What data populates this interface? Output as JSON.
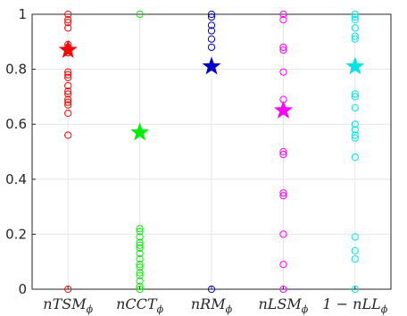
{
  "chart_data": {
    "type": "scatter",
    "categories": [
      "nTSM",
      "nCCT",
      "nRM",
      "nLSM",
      "1 − nLL"
    ],
    "category_subscript": "ϕ",
    "ylim": [
      0,
      1
    ],
    "yticks": [
      0,
      0.2,
      0.4,
      0.6,
      0.8,
      1
    ],
    "ytick_labels": [
      "0",
      "0.2",
      "0.4",
      "0.6",
      "0.8",
      "1"
    ],
    "grid": true,
    "series": [
      {
        "color": "#ff0000",
        "points": [
          0,
          0.56,
          0.64,
          0.67,
          0.68,
          0.69,
          0.71,
          0.72,
          0.74,
          0.77,
          0.78,
          0.79,
          0.86,
          0.88,
          0.89,
          0.95,
          0.97,
          0.98,
          1.0
        ],
        "mean": 0.87
      },
      {
        "color": "#00ee00",
        "points": [
          0,
          0.01,
          0.03,
          0.05,
          0.06,
          0.08,
          0.09,
          0.11,
          0.13,
          0.15,
          0.16,
          0.17,
          0.19,
          0.21,
          0.22,
          1.0
        ],
        "mean": 0.57
      },
      {
        "color": "#0000cc",
        "points": [
          0,
          0.88,
          0.91,
          0.94,
          0.96,
          0.99,
          1.0
        ],
        "mean": 0.81
      },
      {
        "color": "#ff00ff",
        "points": [
          0,
          0.09,
          0.2,
          0.34,
          0.35,
          0.49,
          0.5,
          0.65,
          0.69,
          0.79,
          0.87,
          0.88,
          0.98,
          1.0
        ],
        "mean": 0.65
      },
      {
        "color": "#00e5e5",
        "points": [
          0,
          0.11,
          0.14,
          0.19,
          0.48,
          0.55,
          0.56,
          0.58,
          0.6,
          0.66,
          0.7,
          0.71,
          0.81,
          0.91,
          0.92,
          0.95,
          0.98,
          0.99,
          1.0
        ],
        "mean": 0.81
      }
    ]
  }
}
